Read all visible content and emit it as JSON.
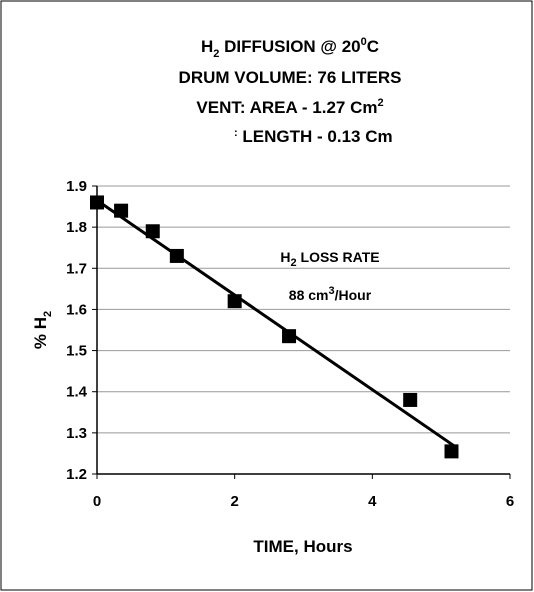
{
  "chart_data": {
    "type": "scatter",
    "title_lines": [
      [
        "H",
        "2",
        " DIFFUSION @ 20",
        "0",
        "C"
      ],
      [
        "DRUM  VOLUME: 76 LITERS"
      ],
      [
        "VENT: AREA - 1.27 Cm",
        "2"
      ],
      [
        ":",
        " LENGTH - 0.13 Cm"
      ]
    ],
    "annotation_lines": [
      [
        "H",
        "2",
        " LOSS RATE"
      ],
      [
        "88 cm",
        "3",
        "/Hour"
      ]
    ],
    "y_label": [
      "% H",
      "2"
    ],
    "x_label": "TIME, Hours",
    "series": [
      {
        "color": "#000000",
        "x": [
          0,
          0.35,
          0.81,
          1.16,
          2.0,
          2.79,
          4.55,
          5.15
        ],
        "values": [
          1.86,
          1.84,
          1.79,
          1.73,
          1.62,
          1.535,
          1.38,
          1.255
        ]
      },
      {
        "color": "#000000",
        "x": [
          0,
          5.2
        ],
        "values": [
          1.865,
          1.267
        ],
        "line": true
      }
    ],
    "xlim": [
      0,
      6
    ],
    "xticks": [
      0,
      2,
      4,
      6
    ],
    "ylim": [
      1.2,
      1.9
    ],
    "yticks": [
      1.2,
      1.3,
      1.4,
      1.5,
      1.6,
      1.7,
      1.8,
      1.9
    ],
    "grid": true
  }
}
